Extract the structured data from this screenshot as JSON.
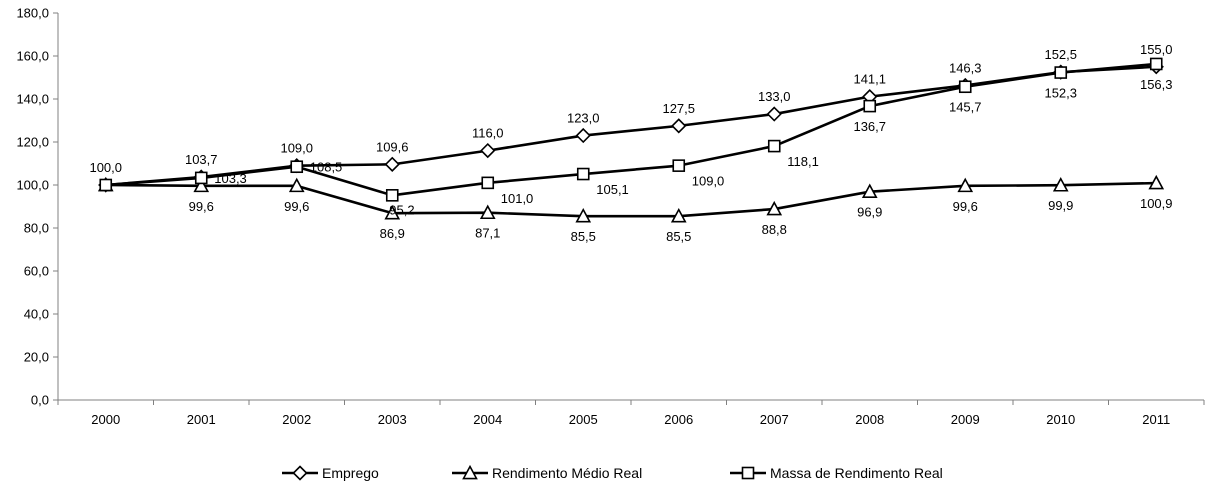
{
  "chart_data": {
    "type": "line",
    "title": "",
    "xlabel": "",
    "ylabel": "",
    "categories": [
      "2000",
      "2001",
      "2002",
      "2003",
      "2004",
      "2005",
      "2006",
      "2007",
      "2008",
      "2009",
      "2010",
      "2011"
    ],
    "ylim": [
      0,
      180
    ],
    "ytick_labels": [
      "0,0",
      "20,0",
      "40,0",
      "60,0",
      "80,0",
      "100,0",
      "120,0",
      "140,0",
      "160,0",
      "180,0"
    ],
    "grid": false,
    "legend_position": "bottom",
    "series": [
      {
        "name": "Emprego",
        "marker": "diamond",
        "values": [
          100.0,
          103.7,
          109.0,
          109.6,
          116.0,
          123.0,
          127.5,
          133.0,
          141.1,
          146.3,
          152.5,
          155.0
        ],
        "labels": [
          "100,0",
          "103,7",
          "109,0",
          "109,6",
          "116,0",
          "123,0",
          "127,5",
          "133,0",
          "141,1",
          "146,3",
          "152,5",
          "155,0"
        ]
      },
      {
        "name": "Rendimento Médio Real",
        "marker": "triangle",
        "values": [
          100.0,
          99.6,
          99.6,
          86.9,
          87.1,
          85.5,
          85.5,
          88.8,
          96.9,
          99.6,
          99.9,
          100.9
        ],
        "labels": [
          "",
          "99,6",
          "99,6",
          "86,9",
          "87,1",
          "85,5",
          "85,5",
          "88,8",
          "96,9",
          "99,6",
          "99,9",
          "100,9"
        ]
      },
      {
        "name": "Massa de Rendimento Real",
        "marker": "square",
        "values": [
          100.0,
          103.3,
          108.5,
          95.2,
          101.0,
          105.1,
          109.0,
          118.1,
          136.7,
          145.7,
          152.3,
          156.3
        ],
        "labels": [
          "",
          "103,3",
          "108,5",
          "95,2",
          "101,0",
          "105,1",
          "109,0",
          "118,1",
          "136,7",
          "145,7",
          "152,3",
          "156,3"
        ]
      }
    ]
  }
}
